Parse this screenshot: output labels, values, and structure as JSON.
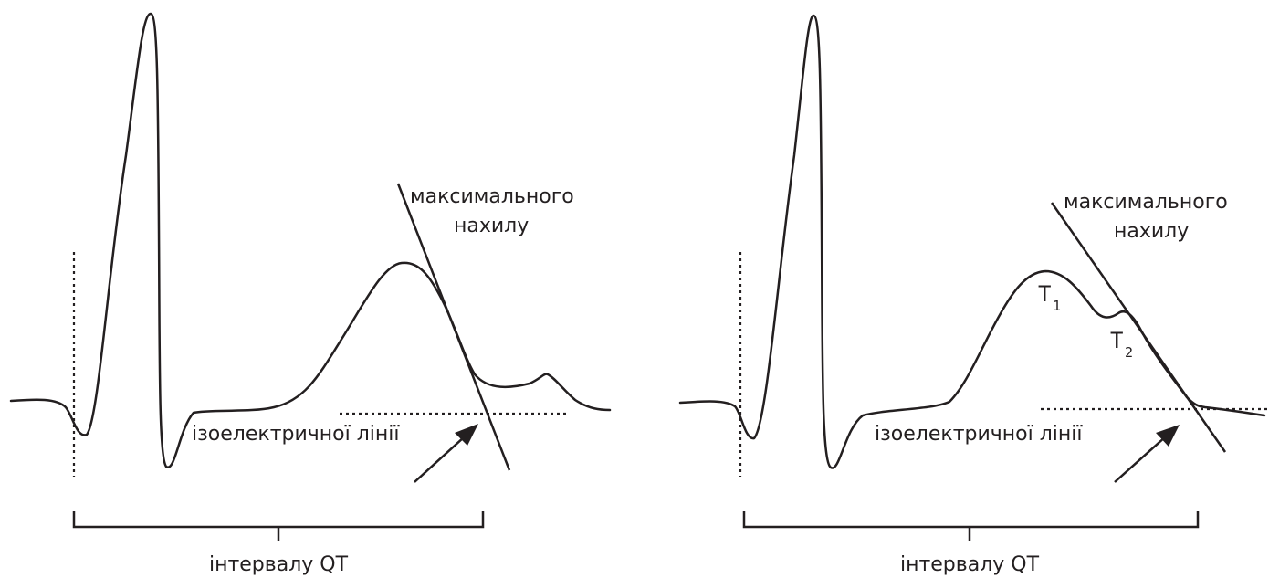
{
  "panels": [
    {
      "tangent_label_line1": "максимального",
      "tangent_label_line2": "нахилу",
      "baseline_label": "ізоелектричної лінії",
      "interval_label": "інтервалу QT"
    },
    {
      "tangent_label_line1": "максимального",
      "tangent_label_line2": "нахилу",
      "baseline_label": "ізоелектричної лінії",
      "interval_label": "інтервалу QT",
      "t1_letter": "T",
      "t1_subscript": "1",
      "t2_letter": "T",
      "t2_subscript": "2"
    }
  ],
  "colors": {
    "ink": "#231f20",
    "background": "#ffffff"
  }
}
